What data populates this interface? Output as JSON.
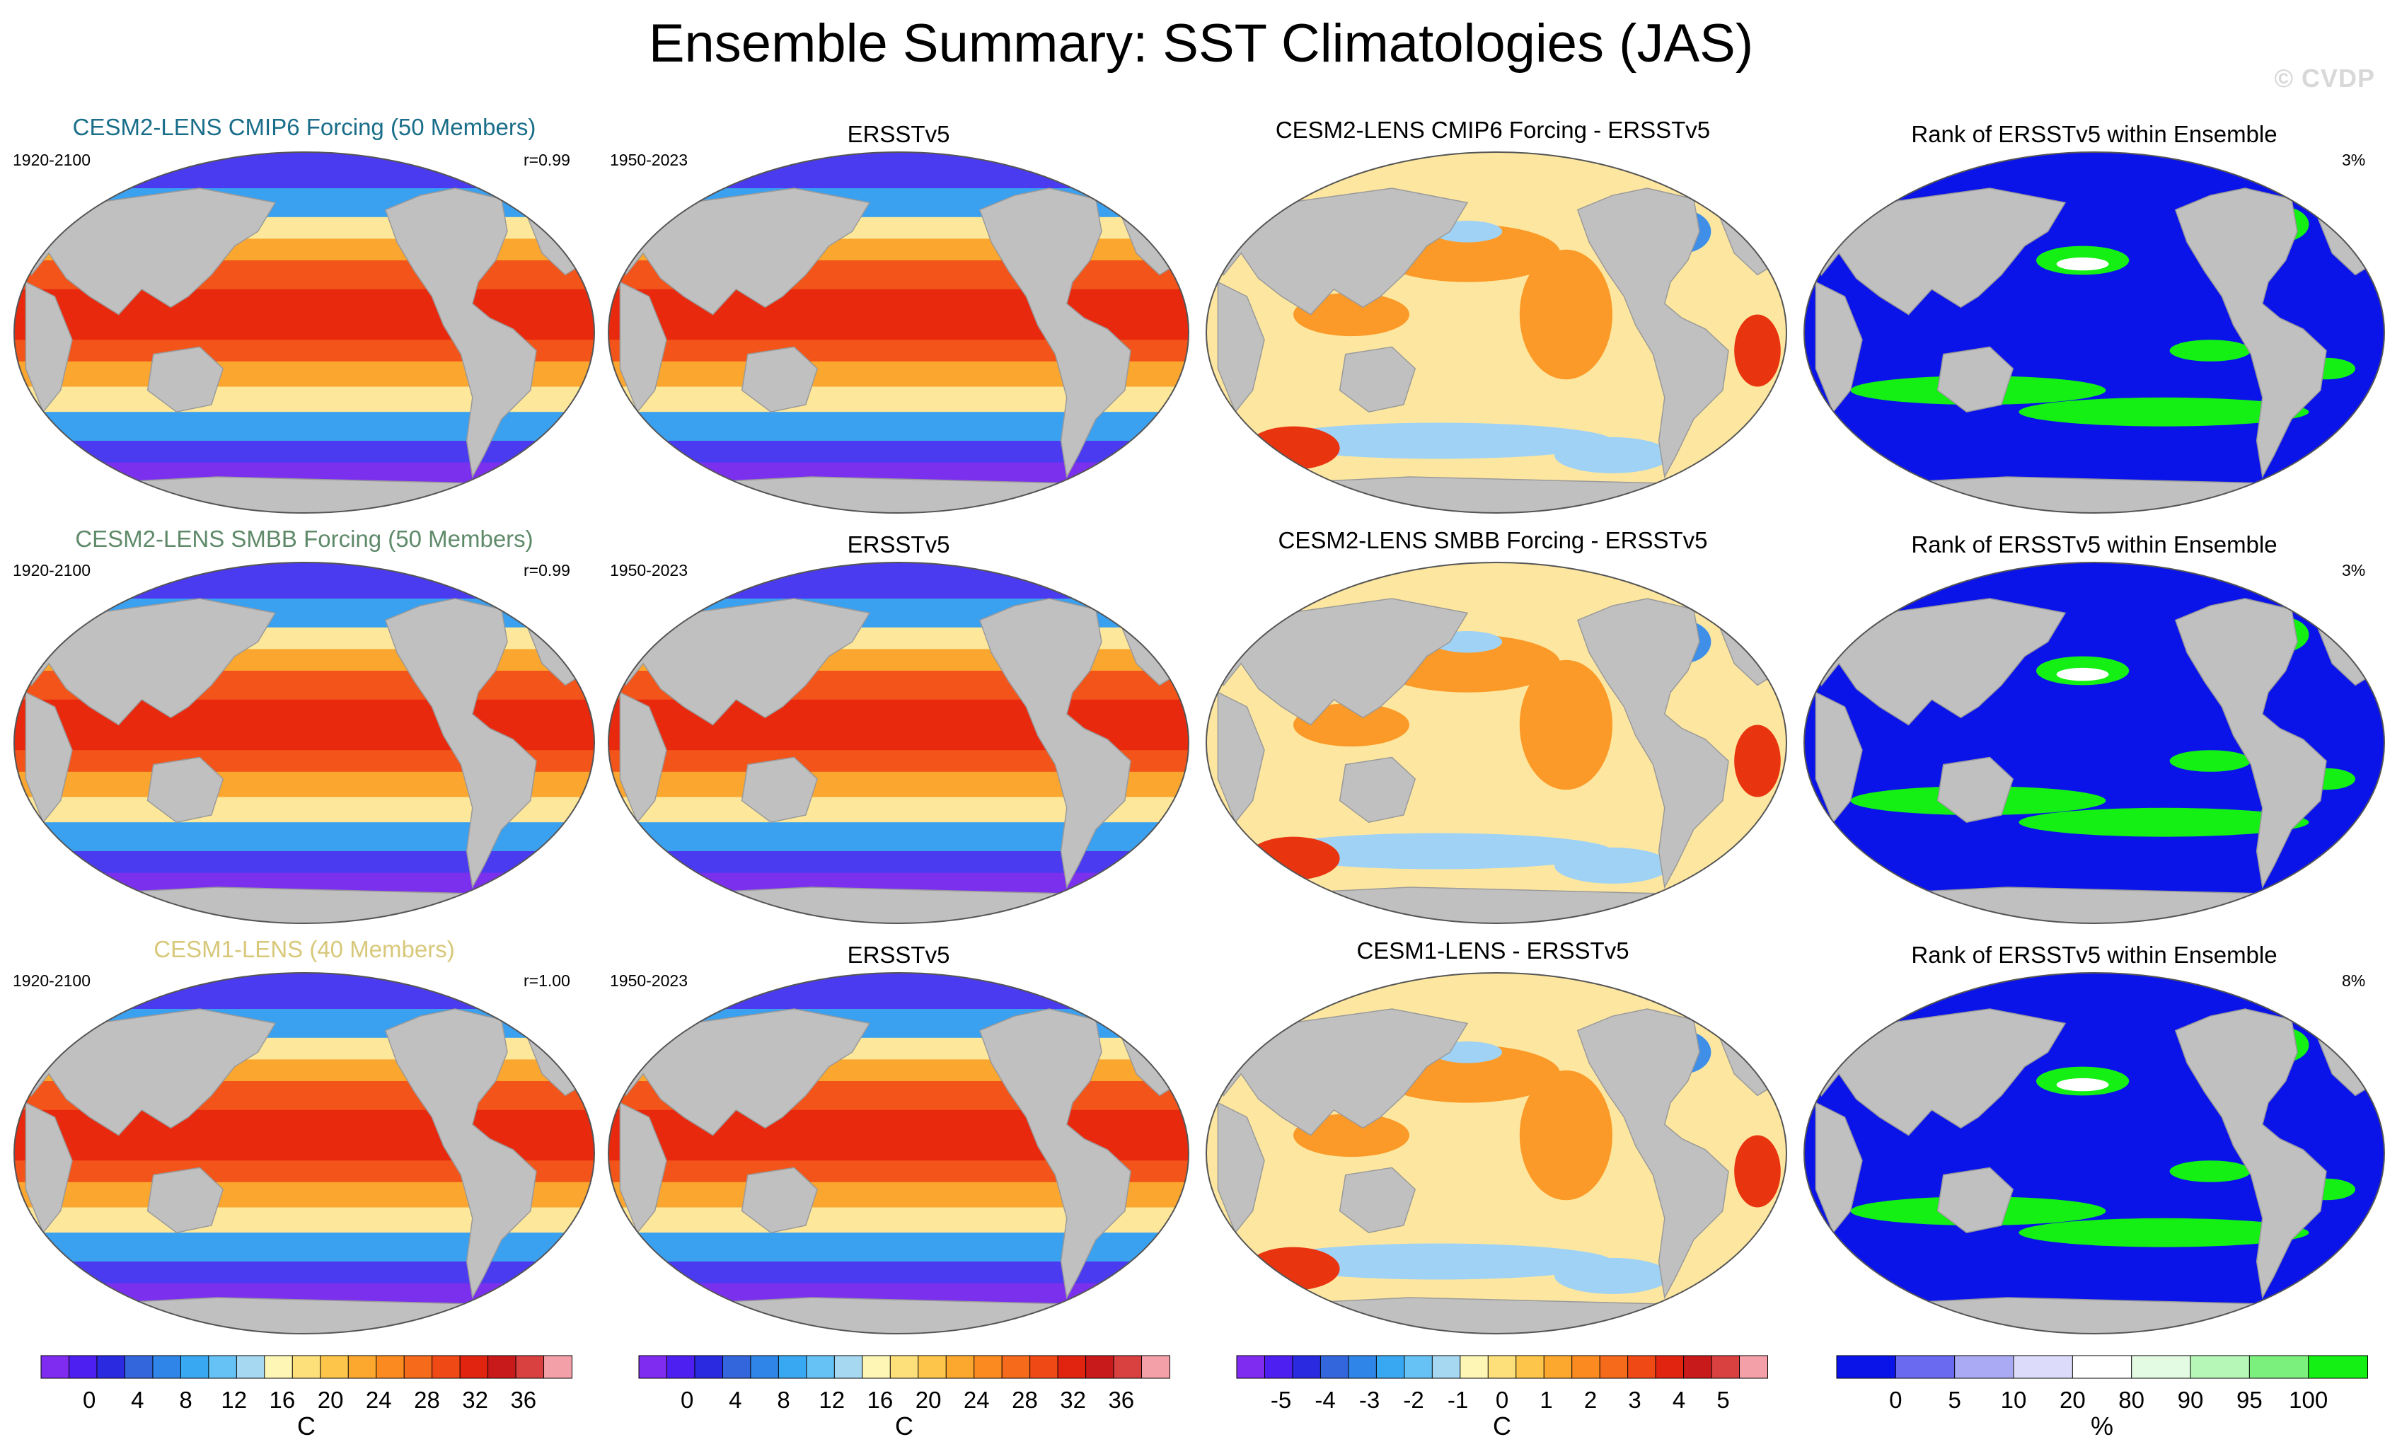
{
  "title": "Ensemble Summary: SST Climatologies (JAS)",
  "watermark": "© CVDP",
  "rows": [
    {
      "model_title": "CESM2-LENS CMIP6 Forcing (50 Members)",
      "model_title_color": "#1a6e8a",
      "model_years": "1920-2100",
      "correlation": "r=0.99",
      "obs_title": "ERSSTv5",
      "obs_years": "1950-2023",
      "diff_title": "CESM2-LENS CMIP6 Forcing - ERSSTv5",
      "rank_title": "Rank of ERSSTv5 within Ensemble",
      "rank_percent": "3%"
    },
    {
      "model_title": "CESM2-LENS SMBB Forcing (50 Members)",
      "model_title_color": "#5f8a6a",
      "model_years": "1920-2100",
      "correlation": "r=0.99",
      "obs_title": "ERSSTv5",
      "obs_years": "1950-2023",
      "diff_title": "CESM2-LENS SMBB Forcing - ERSSTv5",
      "rank_title": "Rank of ERSSTv5 within Ensemble",
      "rank_percent": "3%"
    },
    {
      "model_title": "CESM1-LENS (40 Members)",
      "model_title_color": "#d8c87a",
      "model_years": "1920-2100",
      "correlation": "r=1.00",
      "obs_title": "ERSSTv5",
      "obs_years": "1950-2023",
      "diff_title": "CESM1-LENS - ERSSTv5",
      "rank_title": "Rank of ERSSTv5 within Ensemble",
      "rank_percent": "8%"
    }
  ],
  "colorbars": [
    {
      "unit": "C",
      "ticks": [
        "0",
        "4",
        "8",
        "12",
        "16",
        "20",
        "24",
        "28",
        "32",
        "36"
      ],
      "colors": [
        "#7f2bf0",
        "#4d1ff0",
        "#2a2ae0",
        "#3366dd",
        "#2f86e8",
        "#38a8f2",
        "#66c2f5",
        "#a6d8f2",
        "#fdf6b4",
        "#fde07a",
        "#fdc64a",
        "#fca82e",
        "#fb8a20",
        "#f66a1c",
        "#ef4a16",
        "#e02410",
        "#c81a1a",
        "#d94040",
        "#f4a0a8"
      ]
    },
    {
      "unit": "C",
      "ticks": [
        "0",
        "4",
        "8",
        "12",
        "16",
        "20",
        "24",
        "28",
        "32",
        "36"
      ],
      "colors": [
        "#7f2bf0",
        "#4d1ff0",
        "#2a2ae0",
        "#3366dd",
        "#2f86e8",
        "#38a8f2",
        "#66c2f5",
        "#a6d8f2",
        "#fdf6b4",
        "#fde07a",
        "#fdc64a",
        "#fca82e",
        "#fb8a20",
        "#f66a1c",
        "#ef4a16",
        "#e02410",
        "#c81a1a",
        "#d94040",
        "#f4a0a8"
      ]
    },
    {
      "unit": "C",
      "ticks": [
        "-5",
        "-4",
        "-3",
        "-2",
        "-1",
        "0",
        "1",
        "2",
        "3",
        "4",
        "5"
      ],
      "colors": [
        "#7f2bf0",
        "#4d1ff0",
        "#2a2ae0",
        "#3366dd",
        "#2f86e8",
        "#38a8f2",
        "#66c2f5",
        "#a6d8f2",
        "#fdf6b4",
        "#fde07a",
        "#fdc64a",
        "#fca82e",
        "#fb8a20",
        "#f66a1c",
        "#ef4a16",
        "#e02410",
        "#c81a1a",
        "#d94040",
        "#f4a0a8"
      ]
    },
    {
      "unit": "%",
      "ticks": [
        "0",
        "5",
        "10",
        "20",
        "80",
        "90",
        "95",
        "100"
      ],
      "colors": [
        "#0a14e8",
        "#6a6af0",
        "#aaaaf4",
        "#dcdcfa",
        "#ffffff",
        "#e2fbe2",
        "#b6f6b6",
        "#7cf07c",
        "#14f014"
      ]
    }
  ],
  "panel_colors": {
    "land": "#c0c0c0",
    "sst_cold": "#7b30ee",
    "sst_polar": "#4a3af0",
    "sst_sub": "#3aa0f0",
    "sst_mid": "#fce79a",
    "sst_warm": "#fba62e",
    "sst_hot": "#f2541a",
    "sst_max": "#e8290e",
    "diff_base": "#fde7a0",
    "diff_pos": "#fb9a28",
    "diff_strong": "#e8340f",
    "diff_neg": "#9fd2f4",
    "diff_neg_strong": "#3f8fe8",
    "rank_low": "#0a14e8",
    "rank_high": "#14f014",
    "rank_mid": "#ffffff"
  }
}
